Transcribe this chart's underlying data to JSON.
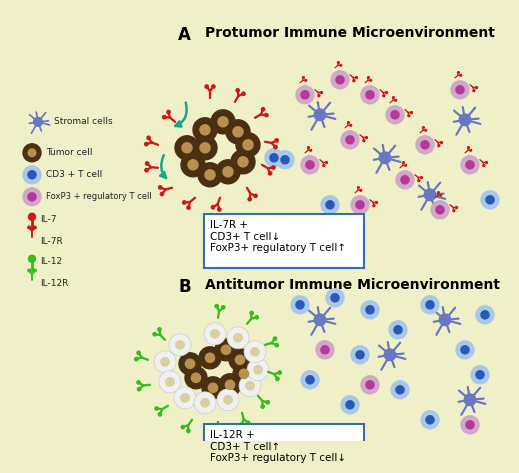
{
  "background_color": "#f0f0c8",
  "title_A": "Protumor Immune Microenvironment",
  "title_B": "Antitumor Immune Microenvironment",
  "label_A": "A",
  "label_B": "B",
  "box_A_text": "IL-7R +\nCD3+ T cell↓\nFoxP3+ regulatory T cell↑",
  "box_B_text": "IL-12R +\nCD3+ T cell↑\nFoxP3+ regulatory T cell↓",
  "tumor_color": "#4a3010",
  "tumor_center_color": "#b89050",
  "cd3_body_color": "#a8c8e8",
  "cd3_center_color": "#2858b8",
  "foxp3_body_color": "#d0a8c8",
  "foxp3_center_color": "#b83898",
  "stromal_color": "#6878c0",
  "il7r_color": "#cc1818",
  "il12r_color": "#38bc18",
  "arrow_color": "#18a888",
  "white_cell_color": "#f0f0f0",
  "white_cell_inner": "#d8d0a0"
}
